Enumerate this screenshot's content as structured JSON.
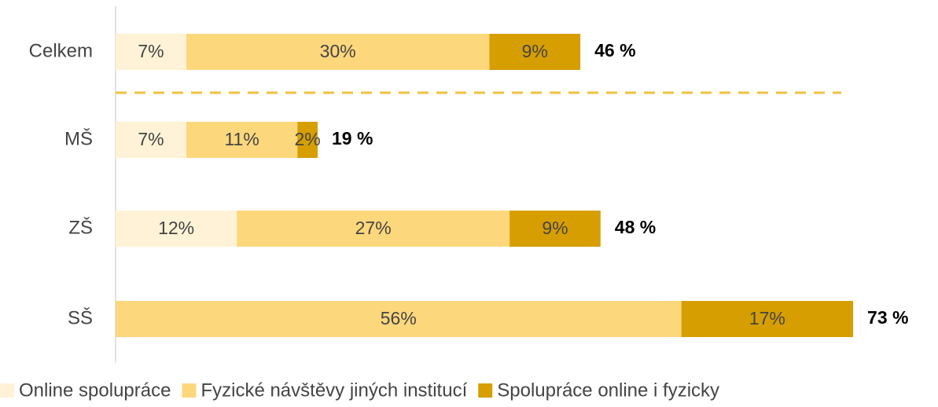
{
  "chart_data": {
    "type": "stacked-bar",
    "categories": [
      "Celkem",
      "MŠ",
      "ZŠ",
      "SŠ"
    ],
    "series": [
      {
        "name": "Online spolupráce",
        "color": "#fff2d6",
        "values": [
          7,
          7,
          12,
          0
        ],
        "value_labels": [
          "7%",
          "7%",
          "12%",
          null
        ]
      },
      {
        "name": "Fyzické návštěvy jiných institucí",
        "color": "#fdd77c",
        "values": [
          30,
          11,
          27,
          56
        ],
        "value_labels": [
          "30%",
          "11%",
          "27%",
          "56%"
        ]
      },
      {
        "name": "Spolupráce online i fyzicky",
        "color": "#d69e00",
        "values": [
          9,
          2,
          9,
          17
        ],
        "value_labels": [
          "9%",
          "2%",
          "9%",
          "17%"
        ]
      }
    ],
    "totals": [
      46,
      19,
      48,
      73
    ],
    "total_labels": [
      "46 %",
      "19 %",
      "48 %",
      "73 %"
    ]
  }
}
